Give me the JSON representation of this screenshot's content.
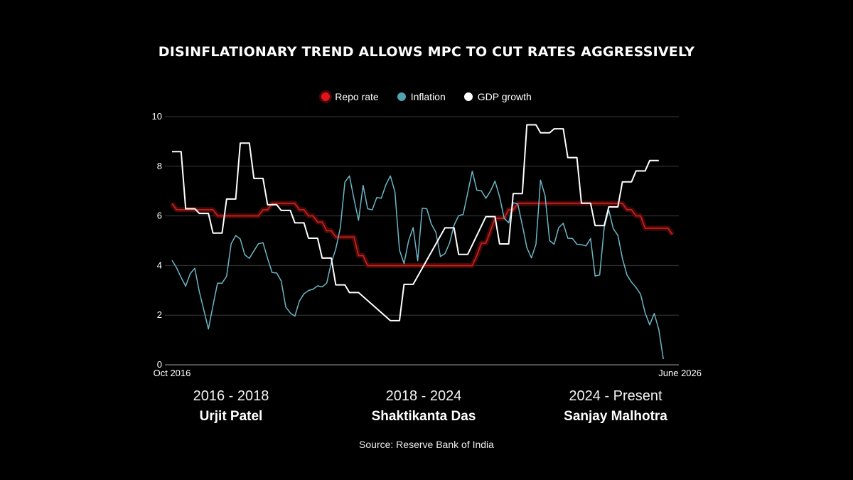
{
  "title": "DISINFLATIONARY TREND ALLOWS MPC TO CUT RATES AGGRESSIVELY",
  "legend": [
    {
      "label": "Repo rate",
      "color": "#e0141e"
    },
    {
      "label": "Inflation",
      "color": "#4fa3b3"
    },
    {
      "label": "GDP growth",
      "color": "#ffffff"
    }
  ],
  "chart_data": {
    "type": "line",
    "title": "DISINFLATIONARY TREND ALLOWS MPC TO CUT RATES AGGRESSIVELY",
    "xlabel": "",
    "ylabel": "",
    "ylim": [
      0,
      10
    ],
    "y_ticks": [
      "0",
      "2",
      "4",
      "6",
      "8",
      "10"
    ],
    "x_tick_labels": [
      "Oct 2016",
      "June 2026"
    ],
    "grid": true,
    "legend_position": "top",
    "series": [
      {
        "name": "Repo rate",
        "color": "#c0281f",
        "points": [
          [
            "2016-10",
            6.5
          ],
          [
            "2016-11",
            6.25
          ],
          [
            "2017-07",
            6.25
          ],
          [
            "2017-08",
            6.0
          ],
          [
            "2018-05",
            6.0
          ],
          [
            "2018-06",
            6.25
          ],
          [
            "2018-07",
            6.25
          ],
          [
            "2018-08",
            6.5
          ],
          [
            "2019-01",
            6.5
          ],
          [
            "2019-02",
            6.25
          ],
          [
            "2019-03",
            6.25
          ],
          [
            "2019-04",
            6.0
          ],
          [
            "2019-05",
            6.0
          ],
          [
            "2019-06",
            5.75
          ],
          [
            "2019-07",
            5.75
          ],
          [
            "2019-08",
            5.4
          ],
          [
            "2019-09",
            5.4
          ],
          [
            "2019-10",
            5.15
          ],
          [
            "2020-02",
            5.15
          ],
          [
            "2020-03",
            4.4
          ],
          [
            "2020-04",
            4.4
          ],
          [
            "2020-05",
            4.0
          ],
          [
            "2022-04",
            4.0
          ],
          [
            "2022-05",
            4.4
          ],
          [
            "2022-06",
            4.9
          ],
          [
            "2022-07",
            4.9
          ],
          [
            "2022-08",
            5.4
          ],
          [
            "2022-09",
            5.9
          ],
          [
            "2022-11",
            5.9
          ],
          [
            "2022-12",
            6.25
          ],
          [
            "2023-01",
            6.25
          ],
          [
            "2023-02",
            6.5
          ],
          [
            "2025-01",
            6.5
          ],
          [
            "2025-02",
            6.25
          ],
          [
            "2025-03",
            6.25
          ],
          [
            "2025-04",
            6.0
          ],
          [
            "2025-05",
            6.0
          ],
          [
            "2025-06",
            5.5
          ],
          [
            "2025-11",
            5.5
          ],
          [
            "2025-12",
            5.25
          ]
        ]
      },
      {
        "name": "Inflation",
        "color": "#6cb6c6",
        "start": "2016-10",
        "frequency": "monthly",
        "values": [
          4.21,
          3.91,
          3.52,
          3.17,
          3.67,
          3.89,
          2.95,
          2.2,
          1.44,
          2.38,
          3.29,
          3.29,
          3.57,
          4.88,
          5.21,
          5.07,
          4.43,
          4.29,
          4.59,
          4.88,
          4.92,
          4.29,
          3.72,
          3.7,
          3.38,
          2.33,
          2.09,
          1.96,
          2.57,
          2.86,
          2.99,
          3.05,
          3.18,
          3.14,
          3.29,
          4.1,
          4.67,
          5.53,
          7.36,
          7.61,
          6.68,
          5.82,
          7.23,
          6.29,
          6.24,
          6.74,
          6.71,
          7.25,
          7.61,
          6.96,
          4.62,
          4.08,
          5.0,
          5.53,
          4.19,
          6.31,
          6.29,
          5.67,
          5.34,
          4.36,
          4.48,
          4.9,
          5.63,
          6.01,
          6.06,
          6.93,
          7.8,
          7.04,
          7.01,
          6.71,
          7.0,
          7.4,
          6.77,
          5.91,
          5.72,
          6.53,
          6.48,
          5.63,
          4.72,
          4.31,
          4.86,
          7.44,
          6.82,
          5.0,
          4.86,
          5.53,
          5.7,
          5.1,
          5.09,
          4.86,
          4.84,
          4.79,
          5.09,
          3.58,
          3.62,
          5.53,
          6.24,
          5.48,
          5.22,
          4.29,
          3.62,
          3.33,
          3.12,
          2.84,
          2.09,
          1.61,
          2.07,
          1.42,
          0.23
        ]
      },
      {
        "name": "GDP growth",
        "color": "#ffffff",
        "frequency": "quarterly",
        "points": [
          [
            "2016-10",
            8.59
          ],
          [
            "2017-01",
            6.29
          ],
          [
            "2017-04",
            6.1
          ],
          [
            "2017-07",
            5.31
          ],
          [
            "2017-10",
            6.68
          ],
          [
            "2018-01",
            8.93
          ],
          [
            "2018-04",
            7.51
          ],
          [
            "2018-07",
            6.45
          ],
          [
            "2018-10",
            6.22
          ],
          [
            "2019-01",
            5.72
          ],
          [
            "2019-04",
            5.1
          ],
          [
            "2019-07",
            4.3
          ],
          [
            "2019-10",
            3.22
          ],
          [
            "2020-01",
            2.91
          ],
          [
            "2020-10",
            1.78
          ],
          [
            "2021-01",
            3.24
          ],
          [
            "2021-10",
            5.52
          ],
          [
            "2022-01",
            4.45
          ],
          [
            "2022-07",
            5.97
          ],
          [
            "2022-10",
            4.87
          ],
          [
            "2023-01",
            6.9
          ],
          [
            "2023-04",
            9.67
          ],
          [
            "2023-07",
            9.35
          ],
          [
            "2023-10",
            9.51
          ],
          [
            "2024-01",
            8.35
          ],
          [
            "2024-04",
            6.51
          ],
          [
            "2024-07",
            5.61
          ],
          [
            "2024-10",
            6.36
          ],
          [
            "2025-01",
            7.37
          ],
          [
            "2025-04",
            7.81
          ],
          [
            "2025-07",
            8.23
          ]
        ]
      }
    ]
  },
  "governors": [
    {
      "years": "2016 - 2018",
      "name": "Urjit Patel"
    },
    {
      "years": "2018 - 2024",
      "name": "Shaktikanta Das"
    },
    {
      "years": "2024 - Present",
      "name": "Sanjay Malhotra"
    }
  ],
  "source": "Source: Reserve Bank of India"
}
